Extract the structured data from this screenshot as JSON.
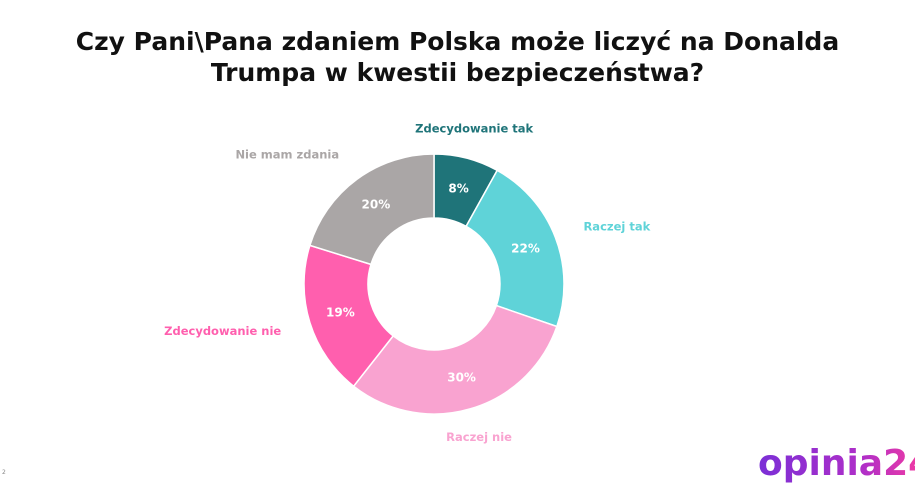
{
  "chart_data": {
    "type": "pie",
    "donut": true,
    "title": "Czy Pani\\Pana zdaniem Polska może liczyć na Donalda Trumpa w kwestii bezpieczeństwa?",
    "categories": [
      "Zdecydowanie tak",
      "Raczej tak",
      "Raczej nie",
      "Zdecydowanie nie",
      "Nie mam zdania"
    ],
    "values": [
      8,
      22,
      30,
      19,
      20
    ],
    "value_labels": [
      "8%",
      "22%",
      "30%",
      "19%",
      "20%"
    ],
    "colors": [
      "#1f7479",
      "#5fd3d8",
      "#f9a3d0",
      "#ff5fae",
      "#aaa6a6"
    ]
  },
  "logo": "opinia24",
  "page_number": "2"
}
